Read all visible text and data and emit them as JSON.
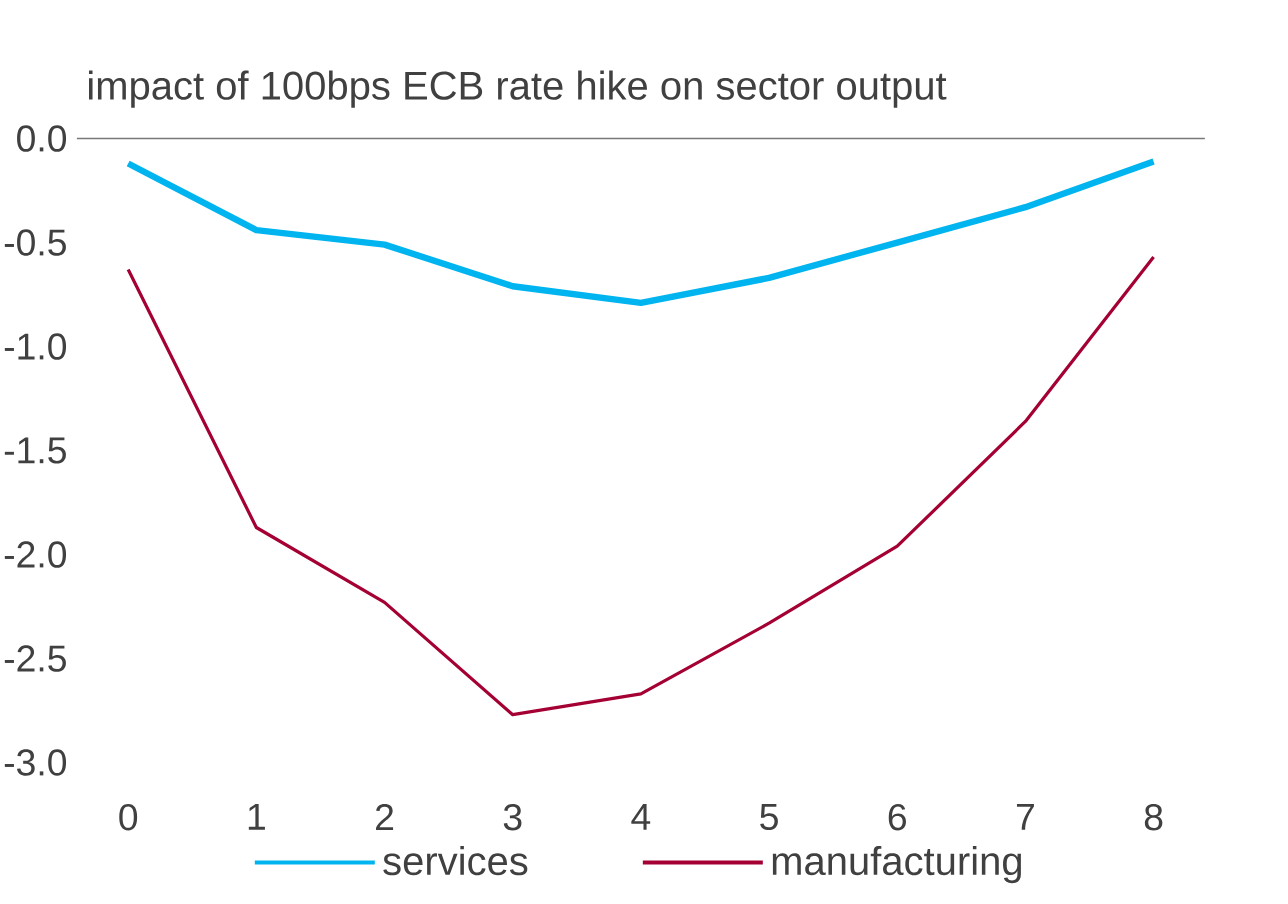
{
  "chart_data": {
    "type": "line",
    "title": "impact of 100bps ECB rate hike on sector output",
    "x": [
      0,
      1,
      2,
      3,
      4,
      5,
      6,
      7,
      8
    ],
    "xlim": [
      -0.4,
      8.4
    ],
    "xticks": [
      0,
      1,
      2,
      3,
      4,
      5,
      6,
      7,
      8
    ],
    "ylim": [
      -3.0,
      0.0
    ],
    "yticks": [
      {
        "value": 0,
        "label": "0.0"
      },
      {
        "value": -0.5,
        "label": "-0.5"
      },
      {
        "value": -1,
        "label": "-1.0"
      },
      {
        "value": -1.5,
        "label": "-1.5"
      },
      {
        "value": -2,
        "label": "-2.0"
      },
      {
        "value": -2.5,
        "label": "-2.5"
      },
      {
        "value": -3,
        "label": "-3.0"
      }
    ],
    "series": [
      {
        "name": "services",
        "color": "#00b4f0",
        "values": [
          -0.12,
          -0.44,
          -0.51,
          -0.71,
          -0.79,
          -0.67,
          -0.5,
          -0.33,
          -0.11
        ]
      },
      {
        "name": "manufacturing",
        "color": "#a50034",
        "values": [
          -0.63,
          -1.87,
          -2.23,
          -2.77,
          -2.67,
          -2.33,
          -1.96,
          -1.36,
          -0.57
        ]
      }
    ],
    "legend": "bottom",
    "grid": false,
    "marker": "none",
    "line_style": "solid"
  }
}
